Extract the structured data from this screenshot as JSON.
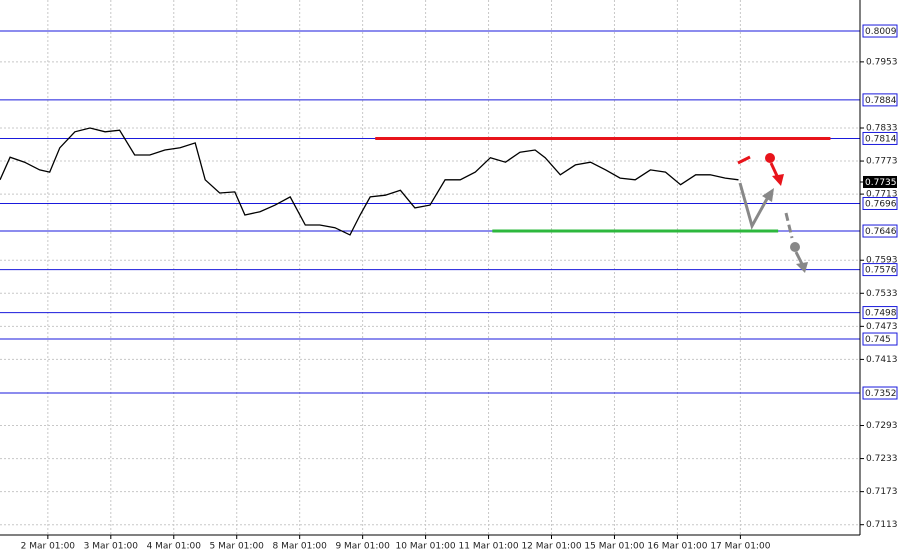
{
  "chart_data": {
    "type": "line",
    "color": "#000000",
    "grid": true,
    "x": [
      -0.76,
      -0.6,
      -0.37,
      -0.13,
      0.03,
      0.19,
      0.43,
      0.67,
      0.91,
      1.14,
      1.38,
      1.62,
      1.86,
      2.1,
      2.34,
      2.5,
      2.73,
      2.97,
      3.13,
      3.37,
      3.61,
      3.85,
      4.09,
      4.32,
      4.56,
      4.8,
      4.96,
      5.12,
      5.36,
      5.6,
      5.83,
      6.07,
      6.31,
      6.55,
      6.79,
      7.03,
      7.27,
      7.5,
      7.74,
      7.9,
      8.14,
      8.38,
      8.62,
      8.86,
      9.09,
      9.33,
      9.57,
      9.81,
      10.05,
      10.29,
      10.52,
      10.76,
      10.97
    ],
    "values": [
      0.7739,
      0.778,
      0.7771,
      0.7757,
      0.7753,
      0.7797,
      0.7826,
      0.7833,
      0.7826,
      0.7829,
      0.7784,
      0.7784,
      0.7793,
      0.7797,
      0.7806,
      0.7739,
      0.7715,
      0.7717,
      0.7675,
      0.7681,
      0.7693,
      0.7708,
      0.7657,
      0.7657,
      0.7652,
      0.7639,
      0.7675,
      0.7708,
      0.7711,
      0.772,
      0.7688,
      0.7693,
      0.7739,
      0.7739,
      0.7753,
      0.7779,
      0.7771,
      0.7789,
      0.7793,
      0.7779,
      0.7748,
      0.7766,
      0.7771,
      0.7757,
      0.7742,
      0.7739,
      0.7757,
      0.7753,
      0.773,
      0.7748,
      0.7748,
      0.7742,
      0.7739
    ],
    "xlim": [
      -0.76,
      12.9
    ],
    "ylim": [
      0.70943,
      0.80653
    ],
    "xticks": [
      {
        "value": 0,
        "label": "2 Mar 01:00"
      },
      {
        "value": 1,
        "label": "3 Mar 01:00"
      },
      {
        "value": 2,
        "label": "4 Mar 01:00"
      },
      {
        "value": 3,
        "label": "5 Mar 01:00"
      },
      {
        "value": 4,
        "label": "8 Mar 01:00"
      },
      {
        "value": 5,
        "label": "9 Mar 01:00"
      },
      {
        "value": 6,
        "label": "10 Mar 01:00"
      },
      {
        "value": 7,
        "label": "11 Mar 01:00"
      },
      {
        "value": 8,
        "label": "12 Mar 01:00"
      },
      {
        "value": 9,
        "label": "15 Mar 01:00"
      },
      {
        "value": 10,
        "label": "16 Mar 01:00"
      },
      {
        "value": 11,
        "label": "17 Mar 01:00"
      }
    ],
    "yticks": [
      0.7953,
      0.7833,
      0.7773,
      0.7713,
      0.7593,
      0.7533,
      0.7473,
      0.7413,
      0.7293,
      0.7233,
      0.7173,
      0.7113
    ],
    "levels": [
      0.8009,
      0.7884,
      0.7814,
      0.7696,
      0.7646,
      0.7576,
      0.7498,
      0.745,
      0.7352
    ],
    "current_price": 0.7735,
    "zones": [
      {
        "value": 0.7814,
        "x": [
          5.2,
          12.43
        ],
        "color": "#e8141b"
      },
      {
        "value": 0.7646,
        "x": [
          7.06,
          11.6
        ],
        "color": "#2db83d"
      }
    ]
  }
}
